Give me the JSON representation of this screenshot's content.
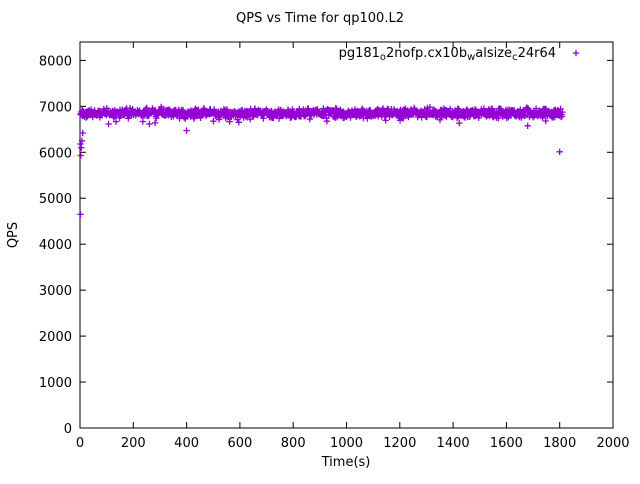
{
  "window": {
    "title": "QPS vs Time for qp100.L2"
  },
  "chart_data": {
    "type": "scatter",
    "title": "QPS vs Time for qp100.L2",
    "xlabel": "Time(s)",
    "ylabel": "QPS",
    "xlim": [
      0,
      2000
    ],
    "ylim": [
      0,
      8400
    ],
    "xticks": [
      0,
      200,
      400,
      600,
      800,
      1000,
      1200,
      1400,
      1600,
      1800,
      2000
    ],
    "yticks": [
      0,
      1000,
      2000,
      3000,
      4000,
      5000,
      6000,
      7000,
      8000
    ],
    "grid": false,
    "background": "#ffffff",
    "border_color": "#000000",
    "legend": {
      "position": "top-right",
      "entries": [
        {
          "label": "pg181_o2nofp.cx10b_walsize_c24r64",
          "label_parts": [
            {
              "text": "pg181"
            },
            {
              "text": "o",
              "sub": true
            },
            {
              "text": "2nofp.cx10b"
            },
            {
              "text": "w",
              "sub": true
            },
            {
              "text": "alsize"
            },
            {
              "text": "c",
              "sub": true
            },
            {
              "text": "24r64"
            }
          ],
          "marker": "plus",
          "color": "#9400D3"
        }
      ]
    },
    "series": [
      {
        "name": "pg181_o2nofp.cx10b_walsize_c24r64",
        "marker": "plus",
        "color": "#9400D3",
        "summary": {
          "description": "Dense steady band of QPS samples over the run",
          "x_start": 2,
          "x_end": 1810,
          "points_approx": 1100,
          "y_mean": 6855,
          "y_spread": 150,
          "y_band": [
            6400,
            7060
          ],
          "dip_chance": 0.04,
          "dip_depth": 260,
          "seed": 1337
        },
        "outliers": [
          [
            2,
            4650
          ],
          [
            2,
            6180
          ],
          [
            3,
            5930
          ],
          [
            5,
            6100
          ],
          [
            7,
            6250
          ],
          [
            10,
            6420
          ],
          [
            1800,
            6010
          ]
        ]
      }
    ]
  }
}
